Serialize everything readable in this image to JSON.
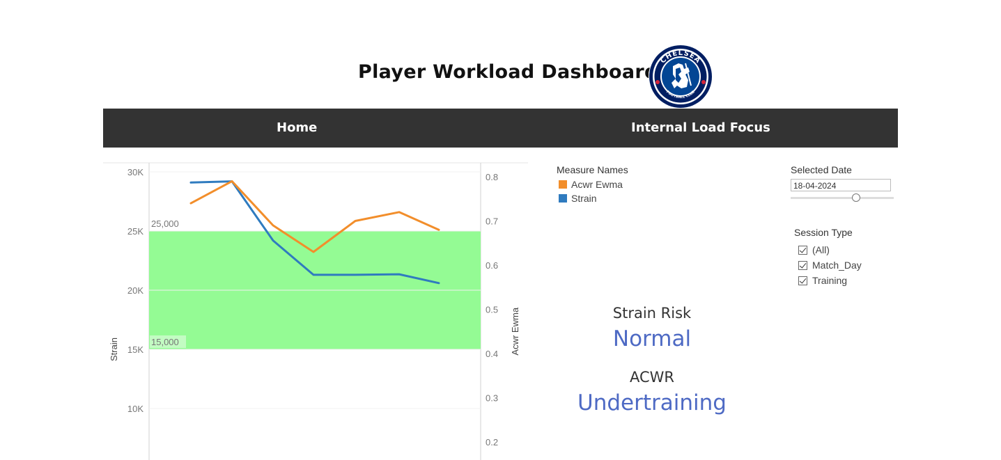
{
  "header": {
    "title": "Player Workload Dashboard",
    "logo_text_top": "CHELSEA",
    "logo_text_bottom": "FOOTBALL CLUB"
  },
  "nav": {
    "items": [
      "Home",
      "Internal Load Focus"
    ]
  },
  "legend": {
    "title": "Measure Names",
    "items": [
      {
        "label": "Acwr Ewma",
        "color": "#f28e2b"
      },
      {
        "label": "Strain",
        "color": "#2f7bbf"
      }
    ]
  },
  "filters": {
    "date_label": "Selected Date",
    "date_value": "18-04-2024",
    "session_label": "Session Type",
    "session_options": [
      "(All)",
      "Match_Day",
      "Training"
    ]
  },
  "kpis": {
    "strain_risk_label": "Strain Risk",
    "strain_risk_value": "Normal",
    "acwr_label": "ACWR",
    "acwr_value": "Undertraining",
    "value_color": "#4e6ac4"
  },
  "chart_data": {
    "type": "line",
    "x": [
      1,
      2,
      3,
      4,
      5,
      6,
      7
    ],
    "series": [
      {
        "name": "Strain",
        "axis": "left",
        "color": "#2f7bbf",
        "values": [
          29100,
          29200,
          24200,
          21300,
          21300,
          21350,
          20600
        ]
      },
      {
        "name": "Acwr Ewma",
        "axis": "right",
        "color": "#f28e2b",
        "values": [
          0.74,
          0.79,
          0.69,
          0.63,
          0.7,
          0.72,
          0.68
        ]
      }
    ],
    "yleft": {
      "label": "Strain",
      "ticks": [
        "30K",
        "25K",
        "20K",
        "15K",
        "10K"
      ],
      "tick_values": [
        30000,
        25000,
        20000,
        15000,
        10000
      ]
    },
    "yright": {
      "label": "Acwr Ewma",
      "ticks": [
        "0.8",
        "0.7",
        "0.6",
        "0.5",
        "0.4",
        "0.3",
        "0.2"
      ],
      "tick_values": [
        0.8,
        0.7,
        0.6,
        0.5,
        0.4,
        0.3,
        0.2
      ]
    },
    "band": {
      "from": 15000,
      "to": 25000,
      "color": "#94fb94",
      "labels": [
        "25,000",
        "15,000"
      ]
    },
    "grid": true
  }
}
